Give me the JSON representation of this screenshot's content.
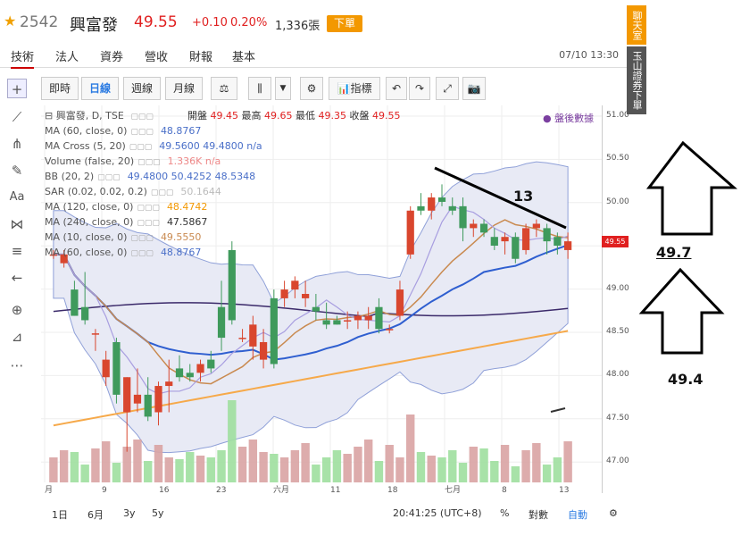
{
  "header": {
    "code": "2542",
    "name": "興富發",
    "price": "49.55",
    "change": "+0.10",
    "percent": "0.20%",
    "volume": "1,336張",
    "order_label": "下單"
  },
  "tabs": [
    "技術",
    "法人",
    "資券",
    "營收",
    "財報",
    "基本"
  ],
  "datetime": "07/10 13:30",
  "toolbar": {
    "buttons": [
      "即時",
      "日線",
      "週線",
      "月線"
    ],
    "indicator_label": "指標"
  },
  "legend": {
    "title": "興富發, D, TSE",
    "ohlc": {
      "open_label": "開盤",
      "open": "49.45",
      "high_label": "最高",
      "high": "49.65",
      "low_label": "最低",
      "low": "49.35",
      "close_label": "收盤",
      "close": "49.55"
    },
    "after_hours": "盤後數據",
    "rows": [
      {
        "label": "MA (60, close, 0)",
        "value": "48.8767",
        "color": "#4a6fc8"
      },
      {
        "label": "MA Cross (5, 20)",
        "value": "49.5600 49.4800 n/a",
        "color": "#4a6fc8"
      },
      {
        "label": "Volume (false, 20)",
        "value": "1.336K n/a",
        "color": "#e88"
      },
      {
        "label": "BB (20, 2)",
        "value": "49.4800 50.4252 48.5348",
        "color": "#4a6fc8"
      },
      {
        "label": "SAR (0.02, 0.02, 0.2)",
        "value": "50.1644",
        "color": "#bbb"
      },
      {
        "label": "MA (120, close, 0)",
        "value": "48.4742",
        "color": "#f39800"
      },
      {
        "label": "MA (240, close, 0)",
        "value": "47.5867",
        "color": "#333"
      },
      {
        "label": "MA (10, close, 0)",
        "value": "49.5550",
        "color": "#c98a50"
      },
      {
        "label": "MA (60, close, 0)",
        "value": "48.8767",
        "color": "#4a6fc8"
      }
    ]
  },
  "yaxis": [
    "51.00",
    "50.50",
    "50.00",
    "49.50",
    "49.00",
    "48.50",
    "48.00",
    "47.50",
    "47.00"
  ],
  "price_tag": "49.55",
  "xaxis": [
    "月",
    "9",
    "16",
    "23",
    "六月",
    "11",
    "18",
    "七月",
    "8",
    "13"
  ],
  "bottombar": {
    "ranges": [
      "1日",
      "6月",
      "3y",
      "5y"
    ],
    "time": "20:41:25 (UTC+8)",
    "percent": "%",
    "log": "對數",
    "auto": "自動"
  },
  "side": {
    "chat": "聊天室",
    "report": "玉山證券下單"
  },
  "annotations": {
    "line_label": "13",
    "up_target": "49.7",
    "down_target": "49.4"
  },
  "chart_data": {
    "type": "candlestick",
    "ylim": [
      46.8,
      51.1
    ],
    "candles": [
      {
        "o": 49.4,
        "h": 49.45,
        "l": 49.35,
        "c": 49.4
      },
      {
        "o": 49.3,
        "h": 49.45,
        "l": 49.25,
        "c": 49.4
      },
      {
        "o": 49.0,
        "h": 49.1,
        "l": 48.7,
        "c": 48.7
      },
      {
        "o": 48.8,
        "h": 49.2,
        "l": 48.6,
        "c": 48.65
      },
      {
        "o": 48.5,
        "h": 48.55,
        "l": 48.3,
        "c": 48.5
      },
      {
        "o": 48.0,
        "h": 48.3,
        "l": 47.9,
        "c": 48.2
      },
      {
        "o": 48.4,
        "h": 48.45,
        "l": 47.7,
        "c": 47.8
      },
      {
        "o": 47.6,
        "h": 48.0,
        "l": 47.15,
        "c": 48.0
      },
      {
        "o": 47.7,
        "h": 48.1,
        "l": 47.6,
        "c": 47.8
      },
      {
        "o": 47.8,
        "h": 48.0,
        "l": 47.5,
        "c": 47.55
      },
      {
        "o": 47.6,
        "h": 47.95,
        "l": 47.45,
        "c": 47.9
      },
      {
        "o": 47.9,
        "h": 48.2,
        "l": 47.6,
        "c": 47.95
      },
      {
        "o": 48.1,
        "h": 48.25,
        "l": 47.95,
        "c": 48.0
      },
      {
        "o": 48.05,
        "h": 48.15,
        "l": 47.95,
        "c": 48.0
      },
      {
        "o": 48.05,
        "h": 48.2,
        "l": 47.95,
        "c": 48.15
      },
      {
        "o": 48.2,
        "h": 48.3,
        "l": 48.05,
        "c": 48.1
      },
      {
        "o": 48.8,
        "h": 49.1,
        "l": 48.3,
        "c": 48.45
      },
      {
        "o": 49.45,
        "h": 49.55,
        "l": 48.6,
        "c": 48.65
      },
      {
        "o": 48.45,
        "h": 48.55,
        "l": 48.4,
        "c": 48.45
      },
      {
        "o": 48.35,
        "h": 48.7,
        "l": 48.2,
        "c": 48.6
      },
      {
        "o": 48.2,
        "h": 48.55,
        "l": 48.1,
        "c": 48.4
      },
      {
        "o": 48.9,
        "h": 49.0,
        "l": 48.1,
        "c": 48.15
      },
      {
        "o": 48.9,
        "h": 49.1,
        "l": 48.8,
        "c": 49.0
      },
      {
        "o": 49.0,
        "h": 49.15,
        "l": 48.9,
        "c": 49.1
      },
      {
        "o": 48.9,
        "h": 49.1,
        "l": 48.8,
        "c": 48.95
      },
      {
        "o": 48.8,
        "h": 48.95,
        "l": 48.65,
        "c": 48.75
      },
      {
        "o": 48.65,
        "h": 48.85,
        "l": 48.55,
        "c": 48.6
      },
      {
        "o": 48.65,
        "h": 48.7,
        "l": 48.6,
        "c": 48.6
      },
      {
        "o": 48.65,
        "h": 48.75,
        "l": 48.55,
        "c": 48.65
      },
      {
        "o": 48.65,
        "h": 48.75,
        "l": 48.55,
        "c": 48.7
      },
      {
        "o": 48.65,
        "h": 48.8,
        "l": 48.55,
        "c": 48.7
      },
      {
        "o": 48.8,
        "h": 48.9,
        "l": 48.5,
        "c": 48.55
      },
      {
        "o": 48.55,
        "h": 48.6,
        "l": 48.5,
        "c": 48.55
      },
      {
        "o": 48.7,
        "h": 49.1,
        "l": 48.65,
        "c": 49.0
      },
      {
        "o": 49.4,
        "h": 49.95,
        "l": 49.35,
        "c": 49.9
      },
      {
        "o": 49.95,
        "h": 50.1,
        "l": 49.85,
        "c": 49.9
      },
      {
        "o": 49.9,
        "h": 50.1,
        "l": 49.8,
        "c": 50.05
      },
      {
        "o": 50.05,
        "h": 50.2,
        "l": 49.95,
        "c": 50.0
      },
      {
        "o": 49.95,
        "h": 50.05,
        "l": 49.85,
        "c": 49.9
      },
      {
        "o": 49.95,
        "h": 50.05,
        "l": 49.55,
        "c": 49.7
      },
      {
        "o": 49.7,
        "h": 49.8,
        "l": 49.6,
        "c": 49.75
      },
      {
        "o": 49.75,
        "h": 49.8,
        "l": 49.6,
        "c": 49.65
      },
      {
        "o": 49.6,
        "h": 49.7,
        "l": 49.45,
        "c": 49.5
      },
      {
        "o": 49.55,
        "h": 49.65,
        "l": 49.4,
        "c": 49.6
      },
      {
        "o": 49.6,
        "h": 49.65,
        "l": 49.3,
        "c": 49.35
      },
      {
        "o": 49.45,
        "h": 49.75,
        "l": 49.4,
        "c": 49.7
      },
      {
        "o": 49.7,
        "h": 49.8,
        "l": 49.6,
        "c": 49.75
      },
      {
        "o": 49.7,
        "h": 49.75,
        "l": 49.4,
        "c": 49.55
      },
      {
        "o": 49.6,
        "h": 49.65,
        "l": 49.4,
        "c": 49.5
      },
      {
        "o": 49.45,
        "h": 49.65,
        "l": 49.35,
        "c": 49.55
      }
    ]
  }
}
